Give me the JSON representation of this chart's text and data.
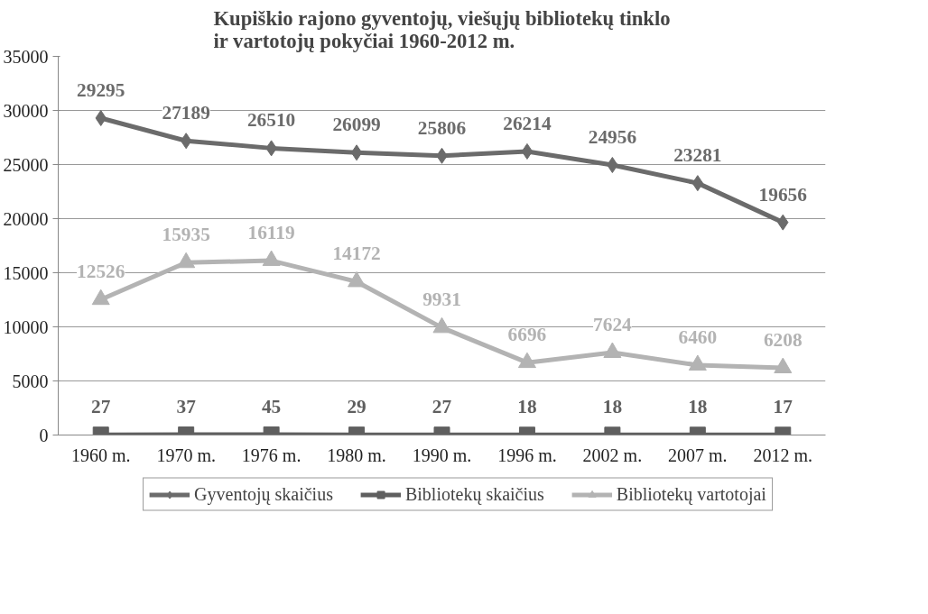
{
  "chart_data": {
    "type": "line",
    "title": "Kupiškio rajono gyventojų, viešųjų bibliotekų tinklo\nir vartotojų pokyčiai 1960-2012 m.",
    "categories": [
      "1960 m.",
      "1970 m.",
      "1976 m.",
      "1980 m.",
      "1990 m.",
      "1996 m.",
      "2002 m.",
      "2007 m.",
      "2012 m."
    ],
    "series": [
      {
        "name": "Gyventojų skaičius",
        "color": "#6b6b6b",
        "marker": "diamond",
        "values": [
          29295,
          27189,
          26510,
          26099,
          25806,
          26214,
          24956,
          23281,
          19656
        ]
      },
      {
        "name": "Bibliotekų skaičius",
        "color": "#5f5f5f",
        "marker": "square",
        "values": [
          27,
          37,
          45,
          29,
          27,
          18,
          18,
          18,
          17
        ]
      },
      {
        "name": "Bibliotekų vartotojai",
        "color": "#b3b3b3",
        "marker": "triangle",
        "values": [
          12526,
          15935,
          16119,
          14172,
          9931,
          6696,
          7624,
          6460,
          6208
        ]
      }
    ],
    "ylim": [
      0,
      35000
    ],
    "yticks": [
      0,
      5000,
      10000,
      15000,
      20000,
      25000,
      30000,
      35000
    ],
    "grid": "y",
    "legend": "bottom",
    "data_labels": true,
    "line_style": "solid"
  }
}
